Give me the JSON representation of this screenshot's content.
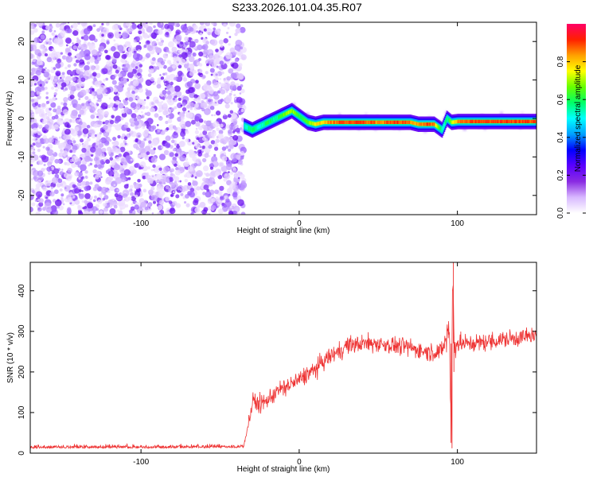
{
  "figure": {
    "title": "S233.2026.101.04.35.R07"
  },
  "chart_data": [
    {
      "type": "heatmap",
      "title": "",
      "xlabel": "Height of straight line (km)",
      "ylabel": "Frequency (Hz)",
      "xlim": [
        -170,
        150
      ],
      "ylim": [
        -25,
        25
      ],
      "xticks": [
        -100,
        0,
        100
      ],
      "yticks": [
        -20,
        -10,
        0,
        10,
        20
      ],
      "colorbar": {
        "label": "Normalized spectral amplitude",
        "range": [
          0,
          1
        ],
        "ticks": [
          0.0,
          0.2,
          0.4,
          0.6,
          0.8
        ],
        "colormap": [
          "#ffffff",
          "#d8b8ff",
          "#8a2be2",
          "#5a00ff",
          "#0000ff",
          "#00a0ff",
          "#00ffff",
          "#00ff66",
          "#66ff00",
          "#ffff00",
          "#ffa000",
          "#ff2000",
          "#ff0066"
        ]
      },
      "noise_region": {
        "x": [
          -170,
          -35
        ],
        "y": [
          -25,
          25
        ]
      },
      "signal_track": {
        "x": [
          -35,
          -30,
          -25,
          -20,
          -15,
          -10,
          -5,
          0,
          5,
          10,
          15,
          20,
          30,
          40,
          50,
          60,
          70,
          75,
          80,
          85,
          90,
          93,
          96,
          100,
          110,
          120,
          130,
          140,
          150
        ],
        "frequency": [
          -2.0,
          -3.0,
          -2.0,
          -1.0,
          0.0,
          1.0,
          2.0,
          0.5,
          -1.0,
          -1.5,
          -1.0,
          -1.0,
          -1.0,
          -1.0,
          -1.0,
          -1.0,
          -1.0,
          -1.5,
          -1.5,
          -1.5,
          -3.0,
          0.0,
          -1.0,
          -0.8,
          -0.8,
          -0.8,
          -0.8,
          -0.8,
          -0.8
        ],
        "amplitude": [
          0.5,
          0.6,
          0.5,
          0.6,
          0.55,
          0.65,
          0.7,
          0.6,
          0.65,
          0.75,
          0.8,
          0.85,
          0.9,
          0.9,
          0.85,
          0.9,
          0.85,
          0.8,
          0.9,
          0.85,
          0.5,
          0.55,
          0.7,
          0.85,
          0.9,
          0.9,
          0.9,
          0.9,
          0.88
        ]
      }
    },
    {
      "type": "line",
      "title": "",
      "xlabel": "Height of straight line (km)",
      "ylabel": "SNR (10 * v/v)",
      "xlim": [
        -170,
        150
      ],
      "ylim": [
        0,
        470
      ],
      "xticks": [
        -100,
        0,
        100
      ],
      "yticks": [
        0,
        100,
        200,
        300,
        400
      ],
      "color": "#ee3333",
      "series": [
        {
          "x": [
            -170,
            -150,
            -130,
            -110,
            -90,
            -70,
            -50,
            -40,
            -35,
            -29,
            -25,
            -20,
            -15,
            -10,
            -5,
            0,
            5,
            10,
            15,
            20,
            25,
            30,
            40,
            50,
            60,
            70,
            80,
            90,
            95,
            96,
            97,
            98,
            100,
            110,
            120,
            130,
            140,
            150
          ],
          "y": [
            18,
            18,
            18,
            18,
            18,
            19,
            19,
            19,
            20,
            130,
            120,
            130,
            150,
            160,
            170,
            180,
            195,
            205,
            225,
            240,
            250,
            265,
            270,
            270,
            265,
            260,
            250,
            250,
            310,
            30,
            430,
            270,
            270,
            270,
            275,
            280,
            285,
            290
          ]
        }
      ]
    }
  ]
}
